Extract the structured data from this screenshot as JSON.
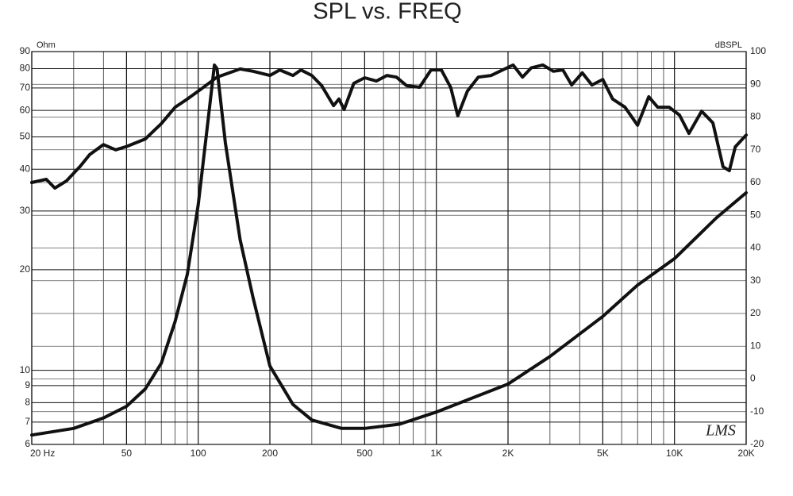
{
  "chart_data": {
    "type": "line",
    "title": "SPL vs. FREQ",
    "ylabel": "Ohm",
    "y2label": "dBSPL",
    "logo": "LMS",
    "xscale": "log",
    "yscale": "log",
    "xlim": [
      20,
      20000
    ],
    "ylim": [
      6,
      90
    ],
    "y2lim": [
      -20,
      100
    ],
    "xticks": [
      {
        "value": 20,
        "label": "20 Hz"
      },
      50,
      100,
      200,
      500,
      {
        "value": 1000,
        "label": "1K"
      },
      {
        "value": 2000,
        "label": "2K"
      },
      {
        "value": 5000,
        "label": "5K"
      },
      {
        "value": 10000,
        "label": "10K"
      },
      {
        "value": 20000,
        "label": "20K"
      }
    ],
    "xminor": [
      30,
      40,
      60,
      70,
      80,
      90,
      300,
      400,
      600,
      700,
      800,
      900,
      3000,
      4000,
      6000,
      7000,
      8000,
      9000
    ],
    "yticks": [
      6,
      7,
      8,
      9,
      10,
      20,
      30,
      40,
      50,
      60,
      70,
      80,
      90
    ],
    "y2ticks": [
      -20,
      -10,
      0,
      10,
      20,
      30,
      40,
      50,
      60,
      70,
      80,
      90,
      100
    ],
    "grid": true,
    "series": [
      {
        "color": "#111111",
        "axis": "y",
        "x": [
          20,
          30,
          40,
          50,
          60,
          70,
          80,
          90,
          100,
          110,
          117,
          120,
          130,
          150,
          170,
          200,
          250,
          300,
          400,
          500,
          700,
          1000,
          2000,
          3000,
          5000,
          7000,
          10000,
          15000,
          20000
        ],
        "values": [
          6.4,
          6.7,
          7.2,
          7.8,
          8.8,
          10.5,
          14,
          19.4,
          31.3,
          56,
          82,
          80,
          48,
          24.6,
          16.5,
          10.3,
          7.9,
          7.1,
          6.7,
          6.7,
          6.9,
          7.5,
          9.1,
          11,
          14.5,
          18,
          21.6,
          28.6,
          34
        ]
      },
      {
        "color": "#111111",
        "axis": "y2",
        "x": [
          20,
          23,
          25,
          28,
          32,
          35,
          40,
          45,
          50,
          60,
          70,
          80,
          90,
          100,
          120,
          150,
          170,
          200,
          220,
          250,
          270,
          300,
          330,
          370,
          390,
          410,
          450,
          500,
          560,
          620,
          680,
          750,
          850,
          950,
          1050,
          1150,
          1230,
          1350,
          1500,
          1700,
          1900,
          2100,
          2300,
          2500,
          2800,
          3100,
          3400,
          3700,
          4100,
          4500,
          5000,
          5500,
          6200,
          7000,
          7800,
          8500,
          9500,
          10500,
          11500,
          13000,
          14500,
          16000,
          17000,
          18000,
          20000
        ],
        "values": [
          60,
          61,
          58.3,
          60.5,
          65,
          68.5,
          71.6,
          70,
          71,
          73.3,
          78,
          83,
          85.5,
          87.9,
          92.2,
          94.7,
          94,
          92.7,
          94.4,
          92.7,
          94.4,
          92.7,
          89.6,
          83.5,
          85.5,
          82.3,
          90.3,
          92,
          91,
          92.7,
          92.2,
          89.6,
          89.1,
          94.4,
          94.4,
          89,
          80.4,
          87.9,
          92.2,
          92.7,
          94.4,
          95.9,
          92.2,
          95,
          95.9,
          94,
          94.4,
          89.8,
          93.5,
          89.8,
          91.5,
          85.5,
          83,
          77.5,
          86.2,
          83,
          83,
          80.6,
          75,
          81.8,
          78.2,
          64.8,
          63.6,
          70.9,
          74.5
        ]
      }
    ]
  }
}
